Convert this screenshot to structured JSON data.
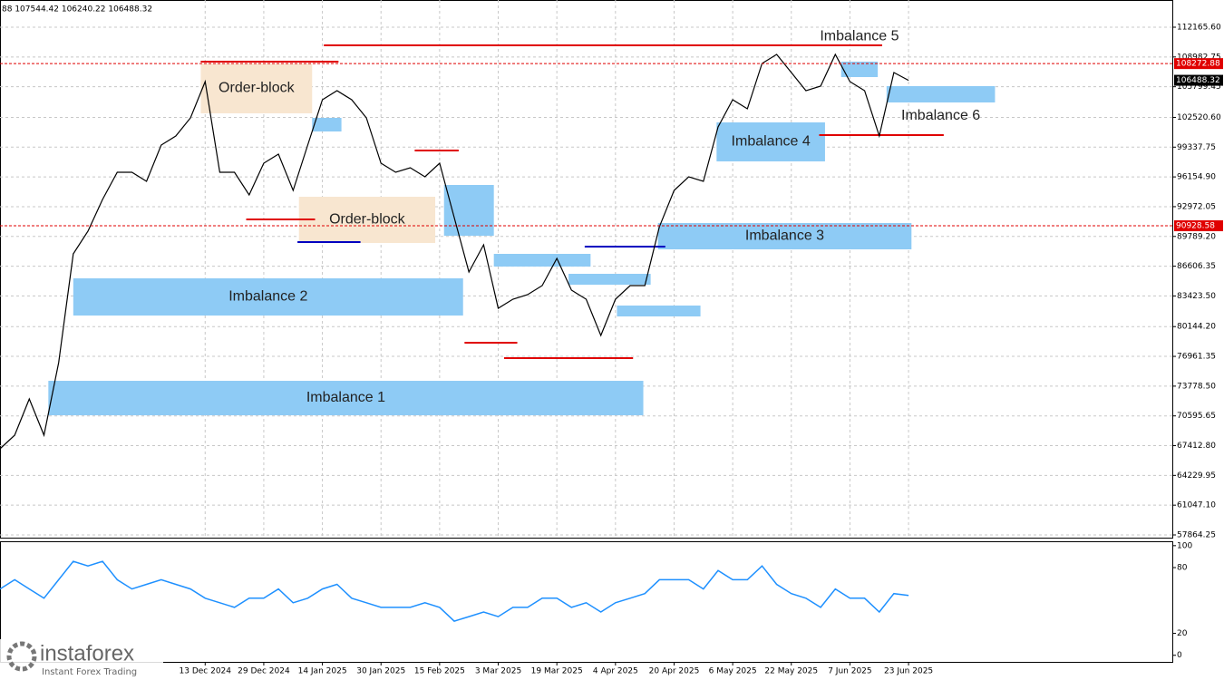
{
  "header": "88 107544.42 106240.22 106488.32",
  "logo": {
    "brand": "instaforex",
    "tagline": "Instant Forex Trading"
  },
  "chart_data": [
    {
      "type": "line",
      "xlim": [
        0,
        80
      ],
      "ylim": [
        57573,
        115075
      ],
      "grid": true,
      "xticks": [
        {
          "value": 14,
          "label": "13 Dec 2024"
        },
        {
          "value": 18,
          "label": "29 Dec 2024"
        },
        {
          "value": 22,
          "label": "14 Jan 2025"
        },
        {
          "value": 26,
          "label": "30 Jan 2025"
        },
        {
          "value": 30,
          "label": "15 Feb 2025"
        },
        {
          "value": 34,
          "label": "3 Mar 2025"
        },
        {
          "value": 38,
          "label": "19 Mar 2025"
        },
        {
          "value": 42,
          "label": "4 Apr 2025"
        },
        {
          "value": 46,
          "label": "20 Apr 2025"
        },
        {
          "value": 50,
          "label": "6 May 2025"
        },
        {
          "value": 54,
          "label": "22 May 2025"
        },
        {
          "value": 58,
          "label": "7 Jun 2025"
        },
        {
          "value": 62,
          "label": "23 Jun 2025"
        }
      ],
      "yticks": [
        {
          "value": 112165.6,
          "label": "112165.60"
        },
        {
          "value": 108982.75,
          "label": "108982.75"
        },
        {
          "value": 105799.45,
          "label": "105799.45"
        },
        {
          "value": 102520.6,
          "label": "102520.60"
        },
        {
          "value": 99337.75,
          "label": "99337.75"
        },
        {
          "value": 96154.9,
          "label": "96154.90"
        },
        {
          "value": 92972.05,
          "label": "92972.05"
        },
        {
          "value": 89789.2,
          "label": "89789.20"
        },
        {
          "value": 86606.35,
          "label": "86606.35"
        },
        {
          "value": 83423.5,
          "label": "83423.50"
        },
        {
          "value": 80144.2,
          "label": "80144.20"
        },
        {
          "value": 76961.35,
          "label": "76961.35"
        },
        {
          "value": 73778.5,
          "label": "73778.50"
        },
        {
          "value": 70595.65,
          "label": "70595.65"
        },
        {
          "value": 67412.8,
          "label": "67412.80"
        },
        {
          "value": 64229.95,
          "label": "64229.95"
        },
        {
          "value": 61047.1,
          "label": "61047.10"
        },
        {
          "value": 57864.25,
          "label": "57864.25"
        }
      ],
      "series": [
        {
          "color": "#000000",
          "values": [
            67075,
            68530,
            72408,
            68530,
            76287,
            87923,
            90348,
            93741,
            96651,
            96651,
            95681,
            99560,
            100530,
            102469,
            106348,
            96651,
            96651,
            94226,
            97620,
            98590,
            94711,
            99560,
            104408,
            105378,
            104408,
            102469,
            97620,
            96651,
            97136,
            96166,
            97620,
            91802,
            85984,
            88893,
            82105,
            83075,
            83560,
            84530,
            87439,
            84045,
            83075,
            79196,
            83075,
            84530,
            84530,
            90833,
            94711,
            96166,
            95681,
            101499,
            104408,
            103439,
            108287,
            109257,
            107317,
            105378,
            105863,
            109257,
            106348,
            105378,
            100530,
            107317,
            106488
          ]
        }
      ],
      "zones": [
        {
          "label": "Imbalance 1",
          "x": [
            3.3,
            43.9
          ],
          "y": [
            70661,
            74346
          ],
          "color": "#8ecbf5"
        },
        {
          "label": "Imbalance 2",
          "x": [
            5.0,
            31.6
          ],
          "y": [
            81330,
            85305
          ],
          "color": "#8ecbf5"
        },
        {
          "label": "Imbalance 3",
          "x": [
            44.9,
            62.2
          ],
          "y": [
            88408,
            91220
          ],
          "color": "#8ecbf5"
        },
        {
          "label": "Imbalance 4",
          "x": [
            48.9,
            56.3
          ],
          "y": [
            97814,
            101984
          ],
          "color": "#8ecbf5"
        },
        {
          "label": "Imbalance 5",
          "x": [
            57.4,
            59.9
          ],
          "y": [
            106832,
            108481
          ],
          "color": "#8ecbf5"
        },
        {
          "label": "Imbalance 6",
          "x": [
            60.5,
            67.9
          ],
          "y": [
            104117,
            105863
          ],
          "color": "#8ecbf5"
        },
        {
          "label": "Order-block",
          "x": [
            13.7,
            21.3
          ],
          "y": [
            102954,
            108287
          ],
          "color": "#f8e6d0"
        },
        {
          "label": "Order-block",
          "x": [
            20.4,
            29.7
          ],
          "y": [
            89087,
            94032
          ],
          "color": "#f8e6d0"
        },
        {
          "x": [
            21.3,
            23.3
          ],
          "y": [
            101014,
            102469
          ],
          "color": "#8ecbf5"
        },
        {
          "x": [
            30.3,
            33.7
          ],
          "y": [
            89863,
            95293
          ],
          "color": "#8ecbf5"
        },
        {
          "x": [
            33.7,
            40.3
          ],
          "y": [
            86566,
            87923
          ],
          "color": "#8ecbf5"
        },
        {
          "x": [
            38.8,
            44.4
          ],
          "y": [
            84627,
            85790
          ],
          "color": "#8ecbf5"
        },
        {
          "x": [
            42.1,
            47.8
          ],
          "y": [
            81233,
            82396
          ],
          "color": "#8ecbf5"
        }
      ],
      "levels": [
        {
          "x": [
            22.1,
            60.2
          ],
          "value": 110226,
          "color": "#e00000"
        },
        {
          "x": [
            13.7,
            23.1
          ],
          "value": 108481,
          "color": "#e00000"
        },
        {
          "x": [
            16.8,
            21.5
          ],
          "value": 91608,
          "color": "#e00000"
        },
        {
          "x": [
            28.3,
            31.3
          ],
          "value": 98978,
          "color": "#e00000"
        },
        {
          "x": [
            31.7,
            35.3
          ],
          "value": 78420,
          "color": "#e00000"
        },
        {
          "x": [
            34.4,
            43.2
          ],
          "value": 76772,
          "color": "#e00000"
        },
        {
          "x": [
            55.9,
            64.4
          ],
          "value": 100626,
          "color": "#e00000"
        },
        {
          "x": [
            20.3,
            24.6
          ],
          "value": 89184,
          "color": "#0000c0"
        },
        {
          "x": [
            39.9,
            45.4
          ],
          "value": 88699,
          "color": "#0000c0"
        }
      ],
      "price_lines": [
        108272.88,
        90928.58
      ],
      "price_line_color": "#e00000",
      "last_price": 106488.32
    },
    {
      "type": "line",
      "xlim": [
        0,
        80
      ],
      "ylim": [
        -6,
        104
      ],
      "grid": false,
      "yticks": [
        100,
        80,
        20,
        0
      ],
      "series": [
        {
          "color": "#1e90ff",
          "values": [
            60.5,
            68.9,
            60.5,
            52.1,
            68.9,
            85.7,
            81.5,
            85.7,
            68.9,
            60.5,
            64.7,
            68.9,
            64.7,
            60.5,
            52.1,
            47.9,
            43.7,
            52.1,
            52.1,
            60.5,
            47.9,
            52.1,
            60.5,
            64.7,
            52.1,
            47.9,
            43.7,
            43.7,
            43.7,
            47.9,
            43.7,
            31.1,
            35.3,
            39.5,
            35.3,
            43.7,
            43.7,
            52.1,
            52.1,
            43.7,
            47.9,
            39.5,
            47.9,
            52.1,
            56.3,
            68.9,
            68.9,
            68.9,
            60.5,
            77.3,
            68.9,
            68.9,
            81.5,
            64.7,
            56.3,
            52.1,
            43.7,
            60.5,
            52.1,
            52.1,
            39.5,
            56.3,
            54.6
          ]
        }
      ]
    }
  ]
}
